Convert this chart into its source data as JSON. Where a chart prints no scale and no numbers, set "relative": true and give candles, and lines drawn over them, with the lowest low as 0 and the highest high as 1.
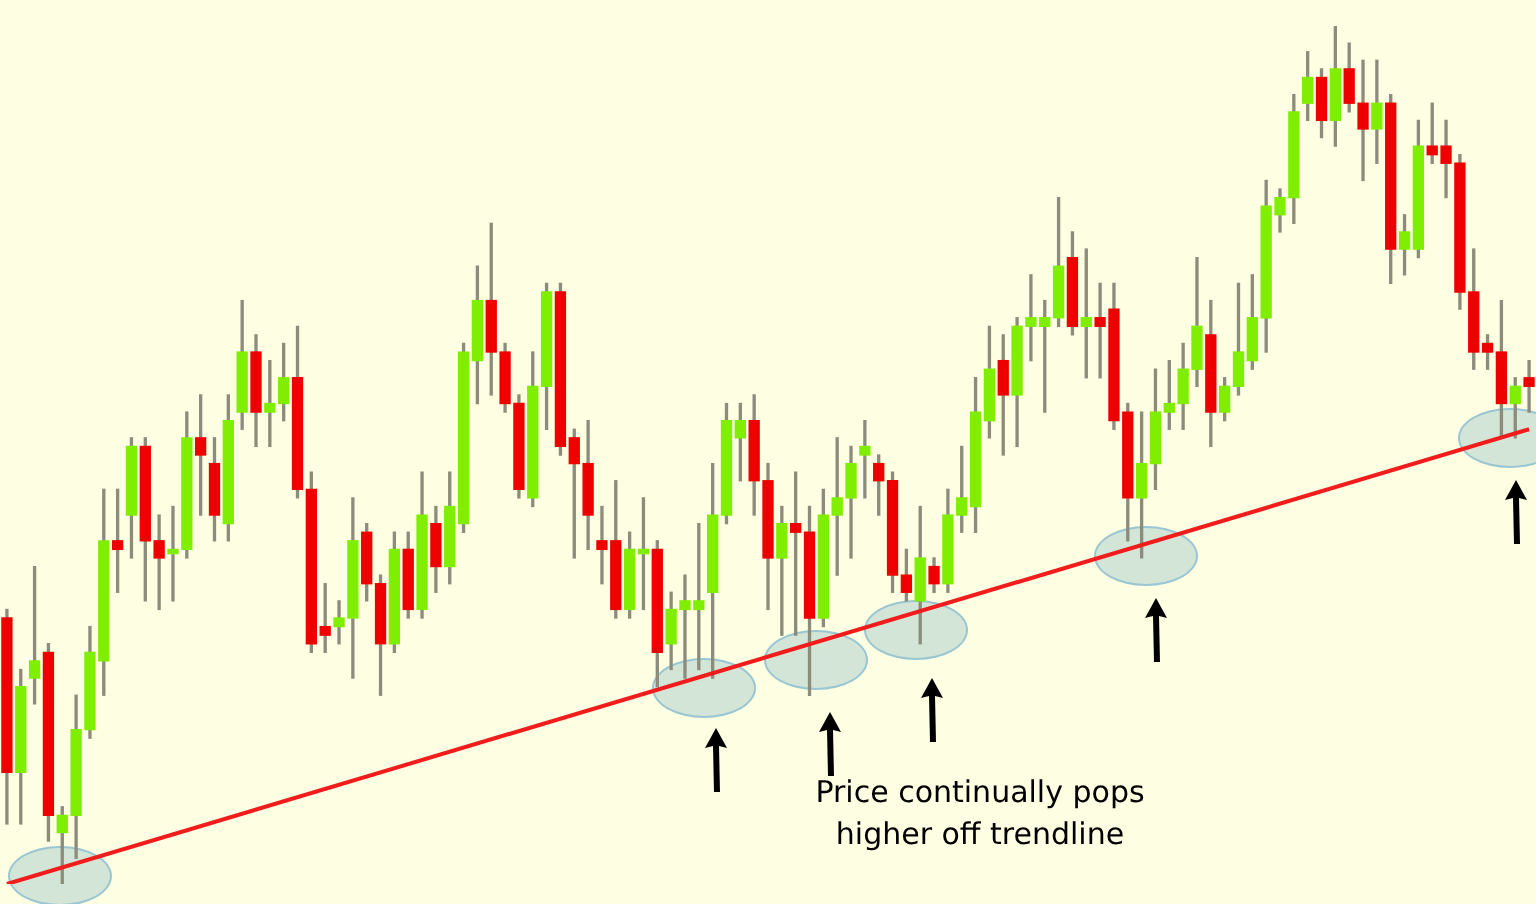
{
  "chart_data": {
    "type": "candlestick",
    "relative": true,
    "colors": [
      "#ee0000",
      "#80ee00",
      "#80ee00",
      "#ee0000",
      "#80ee00",
      "#80ee00",
      "#80ee00",
      "#80ee00",
      "#ee0000",
      "#80ee00",
      "#ee0000",
      "#ee0000",
      "#80ee00",
      "#80ee00",
      "#ee0000",
      "#ee0000",
      "#80ee00",
      "#80ee00",
      "#ee0000",
      "#80ee00",
      "#80ee00",
      "#ee0000",
      "#ee0000",
      "#ee0000",
      "#80ee00",
      "#80ee00",
      "#ee0000",
      "#ee0000",
      "#80ee00",
      "#ee0000",
      "#80ee00",
      "#ee0000",
      "#80ee00",
      "#80ee00",
      "#80ee00",
      "#ee0000",
      "#ee0000",
      "#ee0000",
      "#80ee00",
      "#80ee00",
      "#ee0000",
      "#ee0000",
      "#ee0000",
      "#ee0000",
      "#ee0000",
      "#80ee00",
      "#80ee00",
      "#ee0000",
      "#80ee00",
      "#80ee00",
      "#80ee00",
      "#80ee00",
      "#80ee00",
      "#80ee00",
      "#ee0000",
      "#ee0000",
      "#80ee00",
      "#ee0000",
      "#ee0000",
      "#80ee00",
      "#80ee00",
      "#80ee00",
      "#80ee00",
      "#ee0000",
      "#ee0000",
      "#ee0000",
      "#80ee00",
      "#ee0000",
      "#80ee00",
      "#80ee00",
      "#80ee00",
      "#80ee00",
      "#ee0000",
      "#80ee00",
      "#80ee00",
      "#80ee00",
      "#80ee00",
      "#ee0000",
      "#80ee00",
      "#ee0000",
      "#ee0000",
      "#ee0000",
      "#80ee00",
      "#80ee00",
      "#80ee00",
      "#80ee00",
      "#80ee00",
      "#ee0000",
      "#80ee00",
      "#80ee00",
      "#80ee00",
      "#80ee00",
      "#80ee00",
      "#80ee00",
      "#80ee00",
      "#ee0000",
      "#80ee00",
      "#ee0000",
      "#ee0000",
      "#80ee00",
      "#ee0000",
      "#80ee00",
      "#80ee00",
      "#ee0000",
      "#ee0000",
      "#ee0000",
      "#ee0000",
      "#ee0000",
      "#ee0000",
      "#80ee00",
      "#ee0000"
    ],
    "categories": [
      null,
      null,
      null,
      null,
      null,
      null,
      null,
      null,
      null,
      null,
      null,
      null,
      null,
      null,
      null,
      null,
      null,
      null,
      null,
      null,
      null,
      null,
      null,
      null,
      null,
      null,
      null,
      null,
      null,
      null,
      null,
      null,
      null,
      null,
      null,
      null,
      null,
      null,
      null,
      null,
      null,
      null,
      null,
      null,
      null,
      null,
      null,
      null,
      null,
      null,
      null,
      null,
      null,
      null,
      null,
      null,
      null,
      null,
      null,
      null,
      null,
      null,
      null,
      null,
      null,
      null,
      null,
      null,
      null,
      null,
      null,
      null,
      null,
      null,
      null,
      null,
      null,
      null,
      null,
      null,
      null,
      null,
      null,
      null,
      null,
      null,
      null,
      null,
      null,
      null,
      null,
      null,
      null,
      null,
      null,
      null,
      null,
      null,
      null,
      null,
      null,
      null,
      null,
      null,
      null,
      null,
      null,
      null,
      null,
      null,
      null
    ],
    "ohlc": [
      [
        0.31,
        0.32,
        0.07,
        0.13
      ],
      [
        0.13,
        0.25,
        0.07,
        0.23
      ],
      [
        0.24,
        0.37,
        0.21,
        0.26
      ],
      [
        0.27,
        0.28,
        0.05,
        0.08
      ],
      [
        0.06,
        0.09,
        0,
        0.08
      ],
      [
        0.08,
        0.22,
        0.03,
        0.18
      ],
      [
        0.18,
        0.3,
        0.17,
        0.27
      ],
      [
        0.26,
        0.46,
        0.22,
        0.4
      ],
      [
        0.4,
        0.46,
        0.34,
        0.39
      ],
      [
        0.43,
        0.52,
        0.38,
        0.51
      ],
      [
        0.51,
        0.52,
        0.33,
        0.4
      ],
      [
        0.4,
        0.43,
        0.32,
        0.38
      ],
      [
        0.385,
        0.44,
        0.33,
        0.39
      ],
      [
        0.39,
        0.55,
        0.38,
        0.52
      ],
      [
        0.52,
        0.57,
        0.43,
        0.5
      ],
      [
        0.49,
        0.52,
        0.4,
        0.43
      ],
      [
        0.42,
        0.57,
        0.4,
        0.54
      ],
      [
        0.55,
        0.68,
        0.53,
        0.62
      ],
      [
        0.62,
        0.64,
        0.51,
        0.55
      ],
      [
        0.55,
        0.61,
        0.51,
        0.56
      ],
      [
        0.56,
        0.63,
        0.54,
        0.59
      ],
      [
        0.59,
        0.65,
        0.45,
        0.46
      ],
      [
        0.46,
        0.48,
        0.27,
        0.28
      ],
      [
        0.3,
        0.35,
        0.27,
        0.29
      ],
      [
        0.3,
        0.33,
        0.28,
        0.31
      ],
      [
        0.31,
        0.45,
        0.24,
        0.4
      ],
      [
        0.41,
        0.42,
        0.33,
        0.35
      ],
      [
        0.35,
        0.36,
        0.22,
        0.28
      ],
      [
        0.28,
        0.41,
        0.27,
        0.39
      ],
      [
        0.39,
        0.41,
        0.31,
        0.32
      ],
      [
        0.32,
        0.48,
        0.31,
        0.43
      ],
      [
        0.42,
        0.44,
        0.34,
        0.37
      ],
      [
        0.37,
        0.48,
        0.35,
        0.44
      ],
      [
        0.42,
        0.63,
        0.41,
        0.62
      ],
      [
        0.61,
        0.72,
        0.56,
        0.68
      ],
      [
        0.68,
        0.77,
        0.57,
        0.62
      ],
      [
        0.62,
        0.63,
        0.55,
        0.56
      ],
      [
        0.56,
        0.57,
        0.45,
        0.46
      ],
      [
        0.45,
        0.62,
        0.44,
        0.58
      ],
      [
        0.58,
        0.7,
        0.53,
        0.69
      ],
      [
        0.69,
        0.7,
        0.5,
        0.51
      ],
      [
        0.52,
        0.53,
        0.38,
        0.49
      ],
      [
        0.49,
        0.54,
        0.39,
        0.43
      ],
      [
        0.4,
        0.44,
        0.35,
        0.39
      ],
      [
        0.4,
        0.47,
        0.31,
        0.32
      ],
      [
        0.32,
        0.41,
        0.31,
        0.39
      ],
      [
        0.385,
        0.45,
        0.32,
        0.39
      ],
      [
        0.39,
        0.4,
        0.23,
        0.27
      ],
      [
        0.28,
        0.34,
        0.25,
        0.32
      ],
      [
        0.32,
        0.36,
        0.24,
        0.33
      ],
      [
        0.32,
        0.42,
        0.25,
        0.33
      ],
      [
        0.34,
        0.49,
        0.24,
        0.43
      ],
      [
        0.43,
        0.56,
        0.42,
        0.54
      ],
      [
        0.52,
        0.56,
        0.47,
        0.54
      ],
      [
        0.54,
        0.57,
        0.43,
        0.47
      ],
      [
        0.47,
        0.49,
        0.32,
        0.38
      ],
      [
        0.38,
        0.44,
        0.29,
        0.42
      ],
      [
        0.42,
        0.48,
        0.29,
        0.41
      ],
      [
        0.41,
        0.44,
        0.22,
        0.31
      ],
      [
        0.31,
        0.46,
        0.3,
        0.43
      ],
      [
        0.43,
        0.52,
        0.36,
        0.45
      ],
      [
        0.45,
        0.51,
        0.38,
        0.49
      ],
      [
        0.5,
        0.54,
        0.45,
        0.51
      ],
      [
        0.49,
        0.5,
        0.43,
        0.47
      ],
      [
        0.47,
        0.48,
        0.34,
        0.36
      ],
      [
        0.36,
        0.39,
        0.33,
        0.34
      ],
      [
        0.33,
        0.44,
        0.28,
        0.38
      ],
      [
        0.37,
        0.38,
        0.34,
        0.35
      ],
      [
        0.35,
        0.46,
        0.34,
        0.43
      ],
      [
        0.43,
        0.51,
        0.41,
        0.45
      ],
      [
        0.44,
        0.59,
        0.41,
        0.55
      ],
      [
        0.54,
        0.65,
        0.52,
        0.6
      ],
      [
        0.61,
        0.64,
        0.5,
        0.57
      ],
      [
        0.57,
        0.66,
        0.51,
        0.65
      ],
      [
        0.65,
        0.71,
        0.61,
        0.66
      ],
      [
        0.65,
        0.68,
        0.55,
        0.66
      ],
      [
        0.66,
        0.8,
        0.65,
        0.72
      ],
      [
        0.73,
        0.76,
        0.64,
        0.65
      ],
      [
        0.65,
        0.74,
        0.59,
        0.66
      ],
      [
        0.66,
        0.7,
        0.59,
        0.65
      ],
      [
        0.67,
        0.7,
        0.53,
        0.54
      ],
      [
        0.55,
        0.56,
        0.4,
        0.45
      ],
      [
        0.45,
        0.55,
        0.38,
        0.49
      ],
      [
        0.49,
        0.6,
        0.46,
        0.55
      ],
      [
        0.55,
        0.61,
        0.53,
        0.56
      ],
      [
        0.56,
        0.63,
        0.53,
        0.6
      ],
      [
        0.6,
        0.73,
        0.58,
        0.65
      ],
      [
        0.64,
        0.68,
        0.51,
        0.55
      ],
      [
        0.55,
        0.59,
        0.54,
        0.58
      ],
      [
        0.58,
        0.7,
        0.57,
        0.62
      ],
      [
        0.61,
        0.71,
        0.6,
        0.66
      ],
      [
        0.66,
        0.82,
        0.62,
        0.79
      ],
      [
        0.78,
        0.81,
        0.76,
        0.8
      ],
      [
        0.8,
        0.92,
        0.77,
        0.9
      ],
      [
        0.91,
        0.97,
        0.89,
        0.94
      ],
      [
        0.94,
        0.95,
        0.87,
        0.89
      ],
      [
        0.89,
        1,
        0.86,
        0.95
      ],
      [
        0.95,
        0.98,
        0.9,
        0.91
      ],
      [
        0.91,
        0.96,
        0.82,
        0.88
      ],
      [
        0.88,
        0.96,
        0.84,
        0.91
      ],
      [
        0.91,
        0.92,
        0.7,
        0.74
      ],
      [
        0.74,
        0.78,
        0.71,
        0.76
      ],
      [
        0.74,
        0.89,
        0.73,
        0.86
      ],
      [
        0.86,
        0.91,
        0.84,
        0.85
      ],
      [
        0.86,
        0.89,
        0.8,
        0.84
      ],
      [
        0.84,
        0.85,
        0.67,
        0.69
      ],
      [
        0.69,
        0.74,
        0.6,
        0.62
      ],
      [
        0.63,
        0.64,
        0.6,
        0.62
      ],
      [
        0.62,
        0.68,
        0.52,
        0.56
      ],
      [
        0.56,
        0.59,
        0.52,
        0.58
      ],
      [
        0.59,
        0.61,
        0.55,
        0.58
      ]
    ],
    "series": [
      {
        "type": "line",
        "color": "#f21c1c",
        "values": [
          0,
          null,
          null,
          null,
          null,
          null,
          null,
          null,
          null,
          null,
          null,
          null,
          null,
          null,
          null,
          null,
          null,
          null,
          null,
          null,
          null,
          null,
          null,
          null,
          null,
          null,
          null,
          null,
          null,
          null,
          null,
          null,
          null,
          null,
          null,
          null,
          null,
          null,
          null,
          null,
          null,
          null,
          null,
          null,
          null,
          null,
          null,
          null,
          null,
          null,
          null,
          null,
          null,
          null,
          null,
          null,
          null,
          null,
          null,
          null,
          null,
          null,
          null,
          null,
          null,
          null,
          null,
          null,
          null,
          null,
          null,
          null,
          null,
          null,
          null,
          null,
          null,
          null,
          null,
          null,
          null,
          null,
          null,
          null,
          null,
          null,
          null,
          null,
          null,
          null,
          null,
          null,
          null,
          null,
          null,
          null,
          null,
          null,
          null,
          null,
          null,
          null,
          null,
          null,
          null,
          null,
          null,
          null,
          null,
          null,
          0.53
        ]
      }
    ],
    "annotations": [
      "Price continually pops higher off trendline"
    ]
  }
}
